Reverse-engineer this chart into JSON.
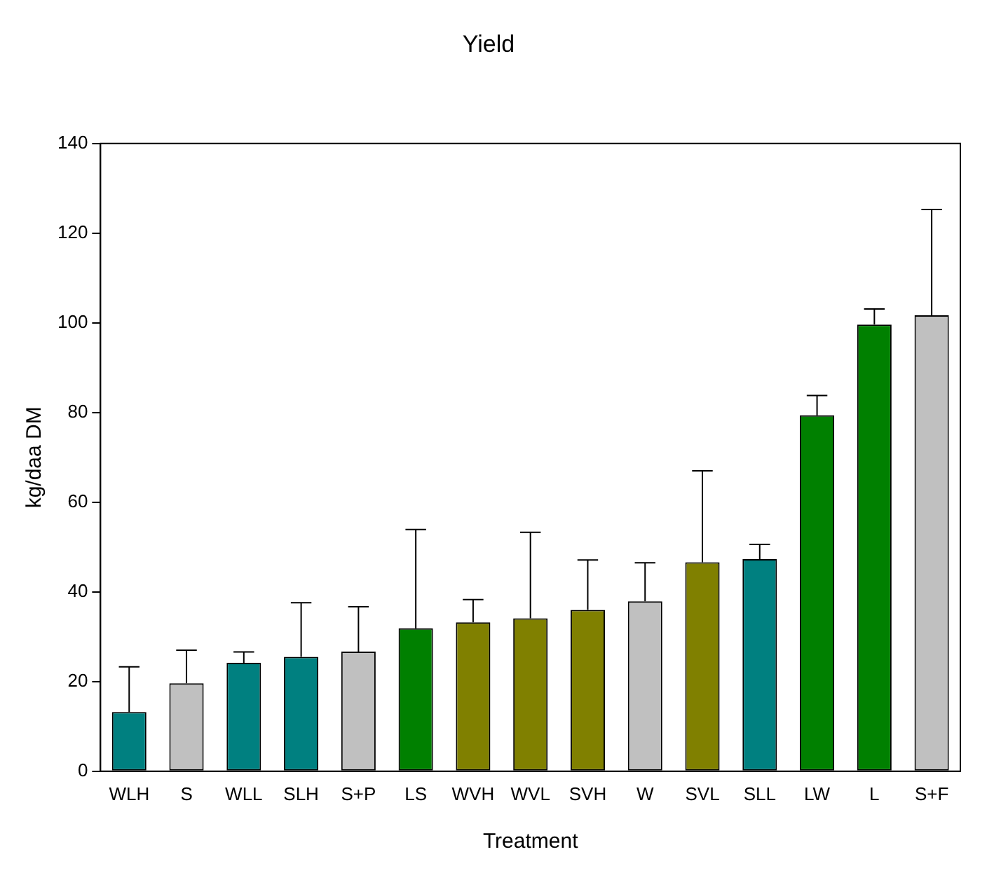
{
  "chart_data": {
    "type": "bar",
    "title": "Yield",
    "xlabel": "Treatment",
    "ylabel": "kg/daa DM",
    "categories": [
      "WLH",
      "S",
      "WLL",
      "SLH",
      "S+P",
      "LS",
      "WVH",
      "WVL",
      "SVH",
      "W",
      "SVL",
      "SLL",
      "LW",
      "L",
      "S+F"
    ],
    "values": [
      13.2,
      19.6,
      24.2,
      25.5,
      26.7,
      31.9,
      33.2,
      34.1,
      36.0,
      37.9,
      46.6,
      47.3,
      79.4,
      99.6,
      101.7
    ],
    "errors": [
      [
        13.2,
        23.3
      ],
      [
        19.6,
        27.0
      ],
      [
        24.2,
        26.6
      ],
      [
        25.5,
        37.6
      ],
      [
        26.7,
        36.7
      ],
      [
        31.9,
        53.9
      ],
      [
        33.2,
        38.3
      ],
      [
        34.1,
        53.3
      ],
      [
        36.0,
        47.1
      ],
      [
        37.9,
        46.5
      ],
      [
        46.6,
        67.0
      ],
      [
        47.3,
        50.6
      ],
      [
        79.4,
        83.8
      ],
      [
        99.6,
        103.1
      ],
      [
        101.7,
        125.3
      ]
    ],
    "colors": [
      "#008080",
      "#c0c0c0",
      "#008080",
      "#008080",
      "#c0c0c0",
      "#008000",
      "#808000",
      "#808000",
      "#808000",
      "#c0c0c0",
      "#808000",
      "#008080",
      "#008000",
      "#008000",
      "#c0c0c0"
    ],
    "ylim": [
      0,
      140
    ],
    "yticks": [
      0,
      20,
      40,
      60,
      80,
      100,
      120,
      140
    ],
    "grid": false,
    "legend": false
  }
}
